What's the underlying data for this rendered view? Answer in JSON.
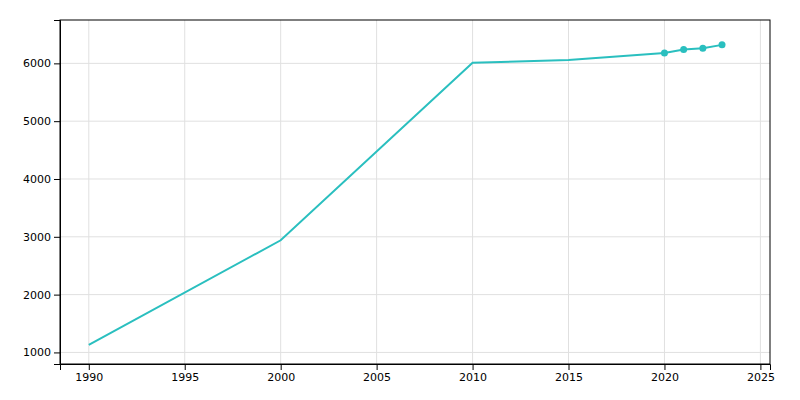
{
  "chart_data": {
    "type": "line",
    "series": [
      {
        "type": "line",
        "color": "#2abfbf",
        "x": [
          1990,
          2000,
          2010,
          2015,
          2020,
          2021,
          2022,
          2023
        ],
        "values": [
          1130,
          2940,
          6010,
          6060,
          6180,
          6240,
          6260,
          6320
        ]
      },
      {
        "type": "scatter",
        "marker": "circle",
        "color": "#2abfbf",
        "x": [
          2020,
          2021,
          2022,
          2023
        ],
        "values": [
          6180,
          6240,
          6260,
          6320
        ]
      }
    ],
    "xlim": [
      1988.5,
      2025.5
    ],
    "ylim": [
      800,
      6750
    ],
    "xticks": [
      1990,
      1995,
      2000,
      2005,
      2010,
      2015,
      2020,
      2025
    ],
    "yticks": [
      1000,
      2000,
      3000,
      4000,
      5000,
      6000
    ],
    "grid": true
  }
}
